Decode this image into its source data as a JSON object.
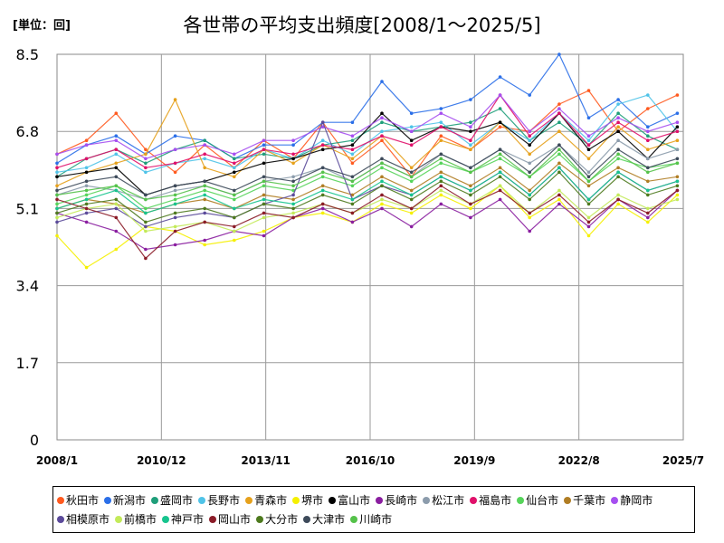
{
  "unit_label": "[単位：回]",
  "chart_data": {
    "type": "line",
    "title": "各世帯の平均支出頻度[2008/1～2025/5]",
    "xlabel": "",
    "ylabel": "",
    "unit": "回",
    "x_range": [
      "2008/1",
      "2025/5"
    ],
    "x_ticks": [
      "2008/1",
      "2010/12",
      "2013/11",
      "2016/10",
      "2019/9",
      "2022/8",
      "2025/7"
    ],
    "y_ticks": [
      0,
      1.7,
      3.4,
      5.1,
      6.8,
      8.5
    ],
    "y_tick_labels": [
      "0",
      "1.7",
      "3.4",
      "5.1",
      "6.8",
      "8.5"
    ],
    "ylim": [
      0,
      8.5
    ],
    "grid": true,
    "legend_position": "bottom",
    "series": [
      {
        "name": "秋田市",
        "color": "#ff5a1f",
        "values": [
          6.3,
          6.6,
          7.2,
          6.4,
          5.9,
          6.5,
          6.0,
          6.6,
          6.2,
          7.0,
          6.1,
          6.6,
          5.8,
          6.7,
          6.4,
          6.9,
          6.8,
          7.4,
          7.7,
          6.8,
          7.3,
          7.6
        ]
      },
      {
        "name": "新潟市",
        "color": "#2b6fe8",
        "values": [
          6.1,
          6.5,
          6.7,
          6.3,
          6.7,
          6.6,
          6.2,
          6.5,
          6.5,
          7.0,
          7.0,
          7.9,
          7.2,
          7.3,
          7.5,
          8.0,
          7.6,
          8.5,
          7.1,
          7.5,
          6.9,
          7.2
        ]
      },
      {
        "name": "盛岡市",
        "color": "#1f9e7a",
        "values": [
          5.8,
          6.2,
          6.4,
          6.1,
          6.4,
          6.6,
          6.2,
          6.3,
          6.2,
          6.5,
          6.6,
          7.0,
          6.8,
          6.9,
          7.0,
          7.3,
          6.6,
          7.0,
          6.5,
          7.2,
          6.7,
          6.4
        ]
      },
      {
        "name": "長野市",
        "color": "#4fc3e8",
        "values": [
          5.9,
          6.0,
          6.3,
          5.9,
          6.1,
          6.2,
          6.0,
          6.4,
          6.2,
          6.6,
          6.3,
          6.8,
          6.9,
          7.0,
          6.5,
          7.0,
          6.6,
          7.2,
          6.6,
          7.4,
          7.6,
          6.8
        ]
      },
      {
        "name": "青森市",
        "color": "#e6a11c",
        "values": [
          5.6,
          5.9,
          6.1,
          6.3,
          7.5,
          6.0,
          5.8,
          6.4,
          6.1,
          6.5,
          6.2,
          6.7,
          6.0,
          6.6,
          6.4,
          7.0,
          6.3,
          6.8,
          6.2,
          6.9,
          6.4,
          6.6
        ]
      },
      {
        "name": "堺市",
        "color": "#f5f000",
        "values": [
          4.5,
          3.8,
          4.2,
          4.7,
          4.6,
          4.3,
          4.4,
          4.6,
          4.9,
          5.0,
          4.8,
          5.2,
          5.0,
          5.4,
          5.1,
          5.6,
          4.9,
          5.3,
          4.5,
          5.2,
          4.8,
          5.4
        ]
      },
      {
        "name": "富山市",
        "color": "#000000",
        "values": [
          5.8,
          5.9,
          6.0,
          5.4,
          5.6,
          5.7,
          5.9,
          6.1,
          6.2,
          6.4,
          6.5,
          7.2,
          6.6,
          6.9,
          6.8,
          7.0,
          6.5,
          7.2,
          6.4,
          6.8,
          6.2,
          6.9
        ]
      },
      {
        "name": "長崎市",
        "color": "#8a1ea0",
        "values": [
          5.0,
          4.8,
          4.6,
          4.2,
          4.3,
          4.4,
          4.6,
          4.5,
          4.9,
          5.1,
          4.8,
          5.1,
          4.7,
          5.2,
          4.9,
          5.3,
          4.6,
          5.2,
          4.7,
          5.3,
          4.9,
          5.5
        ]
      },
      {
        "name": "松江市",
        "color": "#8c9cac",
        "values": [
          5.4,
          5.6,
          5.5,
          5.3,
          5.5,
          5.6,
          5.4,
          5.7,
          5.8,
          6.0,
          5.7,
          6.1,
          5.8,
          6.3,
          6.0,
          6.4,
          6.1,
          6.5,
          5.9,
          6.6,
          6.2,
          6.4
        ]
      },
      {
        "name": "福島市",
        "color": "#e0106a",
        "values": [
          6.0,
          6.2,
          6.4,
          6.0,
          6.1,
          6.3,
          6.1,
          6.4,
          6.3,
          6.5,
          6.4,
          6.7,
          6.5,
          6.9,
          6.6,
          7.6,
          6.7,
          7.2,
          6.5,
          7.0,
          6.6,
          6.8
        ]
      },
      {
        "name": "仙台市",
        "color": "#56d45a",
        "values": [
          5.2,
          5.4,
          5.6,
          5.1,
          5.3,
          5.5,
          5.3,
          5.6,
          5.5,
          5.8,
          5.6,
          6.0,
          5.7,
          6.1,
          5.9,
          6.2,
          5.8,
          6.3,
          5.7,
          6.2,
          6.0,
          6.1
        ]
      },
      {
        "name": "千葉市",
        "color": "#b07d24",
        "values": [
          5.1,
          5.3,
          5.2,
          5.0,
          5.2,
          5.3,
          5.1,
          5.4,
          5.3,
          5.6,
          5.4,
          5.8,
          5.5,
          5.9,
          5.6,
          6.0,
          5.5,
          6.1,
          5.6,
          6.0,
          5.7,
          5.8
        ]
      },
      {
        "name": "静岡市",
        "color": "#a64ff0",
        "values": [
          6.3,
          6.5,
          6.6,
          6.2,
          6.4,
          6.5,
          6.3,
          6.6,
          6.6,
          6.9,
          6.7,
          7.1,
          6.8,
          7.2,
          6.9,
          7.6,
          6.8,
          7.3,
          6.7,
          7.1,
          6.8,
          7.0
        ]
      },
      {
        "name": "相模原市",
        "color": "#5b4a9a",
        "values": [
          4.8,
          5.0,
          5.1,
          4.7,
          4.9,
          5.0,
          4.9,
          5.2,
          5.4,
          7.0,
          5.3,
          5.6,
          5.4,
          5.8,
          5.5,
          5.9,
          5.4,
          6.0,
          5.3,
          5.9,
          5.5,
          5.7
        ]
      },
      {
        "name": "前橋市",
        "color": "#c3ea5a",
        "values": [
          4.9,
          5.1,
          5.2,
          4.6,
          4.7,
          4.8,
          4.6,
          4.9,
          5.0,
          5.2,
          5.0,
          5.3,
          5.1,
          5.5,
          5.2,
          5.6,
          5.0,
          5.5,
          4.9,
          5.4,
          5.1,
          5.3
        ]
      },
      {
        "name": "神戸市",
        "color": "#17c48e",
        "values": [
          5.1,
          5.3,
          5.5,
          5.0,
          5.2,
          5.4,
          5.1,
          5.3,
          5.2,
          5.5,
          5.3,
          5.7,
          5.4,
          5.8,
          5.5,
          5.9,
          5.4,
          6.0,
          5.3,
          5.9,
          5.5,
          5.7
        ]
      },
      {
        "name": "岡山市",
        "color": "#8b1c28",
        "values": [
          5.3,
          5.1,
          4.9,
          4.0,
          4.6,
          4.8,
          4.7,
          5.0,
          4.9,
          5.2,
          5.0,
          5.4,
          5.1,
          5.6,
          5.2,
          5.5,
          5.0,
          5.4,
          4.8,
          5.3,
          5.0,
          5.5
        ]
      },
      {
        "name": "大分市",
        "color": "#4e7a1e",
        "values": [
          5.0,
          5.2,
          5.3,
          4.8,
          5.0,
          5.1,
          4.9,
          5.2,
          5.1,
          5.4,
          5.2,
          5.6,
          5.3,
          5.7,
          5.4,
          5.8,
          5.3,
          5.9,
          5.2,
          5.8,
          5.4,
          5.6
        ]
      },
      {
        "name": "大津市",
        "color": "#3d4a5a",
        "values": [
          5.5,
          5.7,
          5.8,
          5.4,
          5.6,
          5.7,
          5.5,
          5.8,
          5.7,
          6.0,
          5.8,
          6.2,
          5.9,
          6.3,
          6.0,
          6.4,
          5.9,
          6.5,
          5.8,
          6.4,
          6.0,
          6.2
        ]
      },
      {
        "name": "川崎市",
        "color": "#55c24a",
        "values": [
          5.4,
          5.5,
          5.6,
          5.3,
          5.4,
          5.6,
          5.4,
          5.7,
          5.6,
          5.9,
          5.7,
          6.1,
          5.8,
          6.2,
          5.9,
          6.3,
          5.8,
          6.4,
          5.7,
          6.3,
          5.9,
          6.1
        ]
      }
    ]
  }
}
